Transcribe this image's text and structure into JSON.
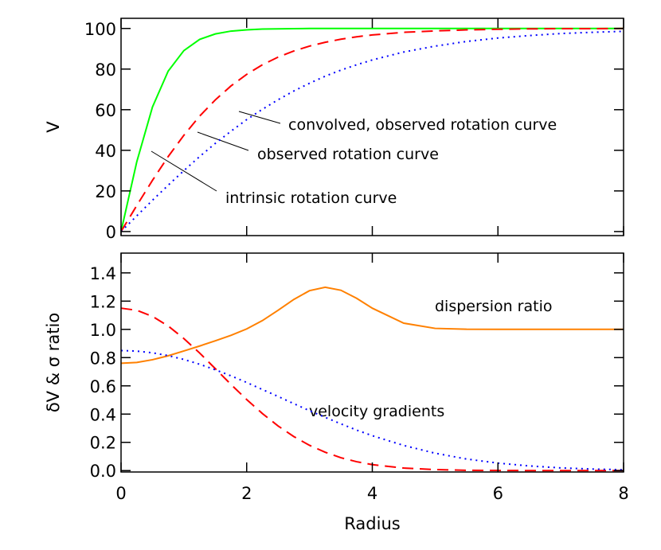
{
  "chart_data": [
    {
      "type": "line",
      "ylabel": "V",
      "x": [
        0,
        0.25,
        0.5,
        0.75,
        1,
        1.25,
        1.5,
        1.75,
        2,
        2.25,
        2.5,
        2.75,
        3,
        3.25,
        3.5,
        3.75,
        4,
        4.5,
        5,
        5.5,
        6,
        6.5,
        7,
        7.5,
        8
      ],
      "series": [
        {
          "color": "#00ff00",
          "style": "solid",
          "values": [
            0,
            34.3,
            61.3,
            79.0,
            89.1,
            94.6,
            97.3,
            98.7,
            99.3,
            99.7,
            99.8,
            99.9,
            100,
            100,
            100,
            100,
            100,
            100,
            100,
            100,
            100,
            100,
            100,
            100,
            100
          ]
        },
        {
          "color": "#ff0000",
          "style": "dashed",
          "values": [
            0,
            12.8,
            25.2,
            36.9,
            47.4,
            56.8,
            64.8,
            71.7,
            77.4,
            82.1,
            85.9,
            88.9,
            91.3,
            93.2,
            94.7,
            95.9,
            96.8,
            98.1,
            98.8,
            99.3,
            99.6,
            99.8,
            99.9,
            99.9,
            100.0
          ]
        },
        {
          "color": "#0000ff",
          "style": "dotted",
          "values": [
            0,
            7.7,
            15.4,
            22.8,
            30.0,
            36.9,
            43.4,
            49.4,
            55.1,
            60.2,
            64.9,
            69.2,
            73.0,
            76.5,
            79.5,
            82.1,
            84.5,
            88.4,
            91.3,
            93.6,
            95.3,
            96.5,
            97.5,
            98.1,
            98.6
          ]
        }
      ],
      "xlim": [
        0,
        8
      ],
      "xticks": [
        0,
        2,
        4,
        6,
        8
      ],
      "ylim": [
        -2,
        105
      ],
      "yticks": [
        0,
        20,
        40,
        60,
        80,
        100
      ],
      "annotations": [
        "convolved, observed rotation curve",
        "observed rotation curve",
        "intrinsic rotation curve"
      ]
    },
    {
      "type": "line",
      "ylabel": "δV & σ ratio",
      "xlabel": "Radius",
      "x": [
        0,
        0.25,
        0.5,
        0.75,
        1,
        1.25,
        1.5,
        1.75,
        2,
        2.25,
        2.5,
        2.75,
        3,
        3.25,
        3.5,
        3.75,
        4,
        4.5,
        5,
        5.5,
        6,
        6.5,
        7,
        7.5,
        8
      ],
      "series": [
        {
          "color": "#ff8000",
          "style": "solid",
          "values": [
            0.76,
            0.766,
            0.785,
            0.813,
            0.847,
            0.882,
            0.919,
            0.958,
            1.003,
            1.062,
            1.135,
            1.212,
            1.274,
            1.298,
            1.277,
            1.22,
            1.15,
            1.044,
            1.007,
            1.001,
            1.0,
            1.0,
            1.0,
            1.0,
            1.0
          ]
        },
        {
          "color": "#ff0000",
          "style": "dashed",
          "values": [
            1.15,
            1.135,
            1.092,
            1.024,
            0.935,
            0.833,
            0.722,
            0.61,
            0.503,
            0.404,
            0.316,
            0.241,
            0.179,
            0.13,
            0.091,
            0.063,
            0.042,
            0.018,
            0.007,
            0.002,
            0.001,
            0,
            0,
            0,
            0
          ]
        },
        {
          "color": "#0000ff",
          "style": "dotted",
          "values": [
            0.85,
            0.846,
            0.834,
            0.814,
            0.787,
            0.753,
            0.714,
            0.671,
            0.624,
            0.574,
            0.525,
            0.474,
            0.424,
            0.377,
            0.331,
            0.287,
            0.247,
            0.178,
            0.123,
            0.082,
            0.053,
            0.033,
            0.019,
            0.011,
            0.006
          ]
        }
      ],
      "xlim": [
        0,
        8
      ],
      "xticks": [
        0,
        2,
        4,
        6,
        8
      ],
      "ylim": [
        -0.01,
        1.54
      ],
      "yticks": [
        {
          "value": 0,
          "label": "0.0"
        },
        0.2,
        0.4,
        0.6,
        0.8,
        {
          "value": 1,
          "label": "1.0"
        },
        1.2,
        1.4
      ],
      "annotations": [
        "dispersion ratio",
        "velocity gradients"
      ]
    }
  ]
}
